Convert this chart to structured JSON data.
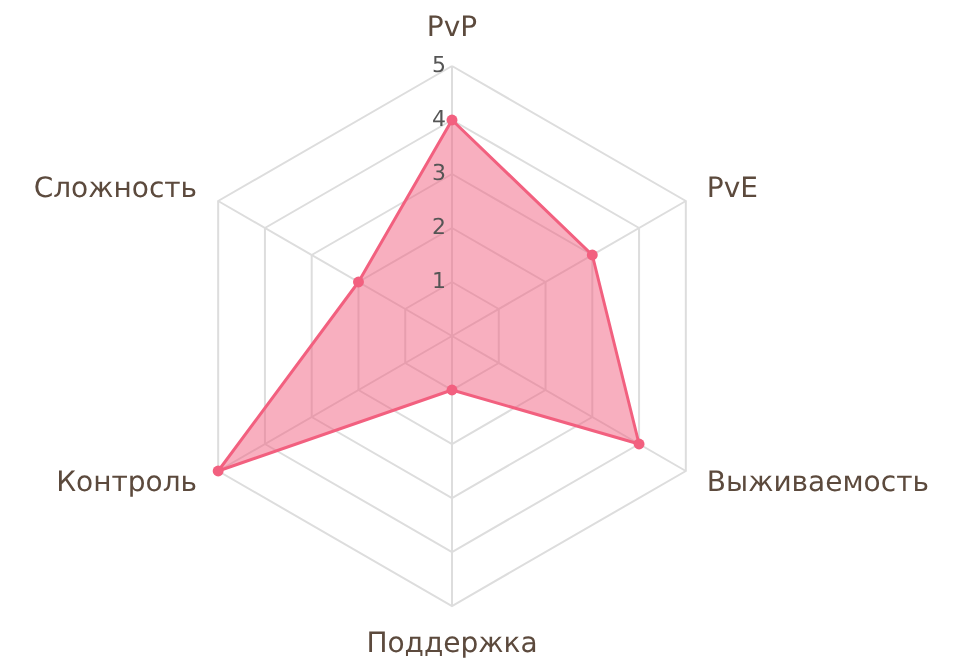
{
  "chart_data": {
    "type": "radar",
    "categories": [
      "PvP",
      "PvE",
      "Выживаемость",
      "Поддержка",
      "Контроль",
      "Сложность"
    ],
    "ylim": [
      0,
      5
    ],
    "yticks": [
      1,
      2,
      3,
      4,
      5
    ],
    "grid": true,
    "marker": "circle",
    "series": [
      {
        "color": "#f2607f",
        "values": [
          4,
          3,
          4,
          1,
          5,
          2
        ]
      }
    ]
  }
}
